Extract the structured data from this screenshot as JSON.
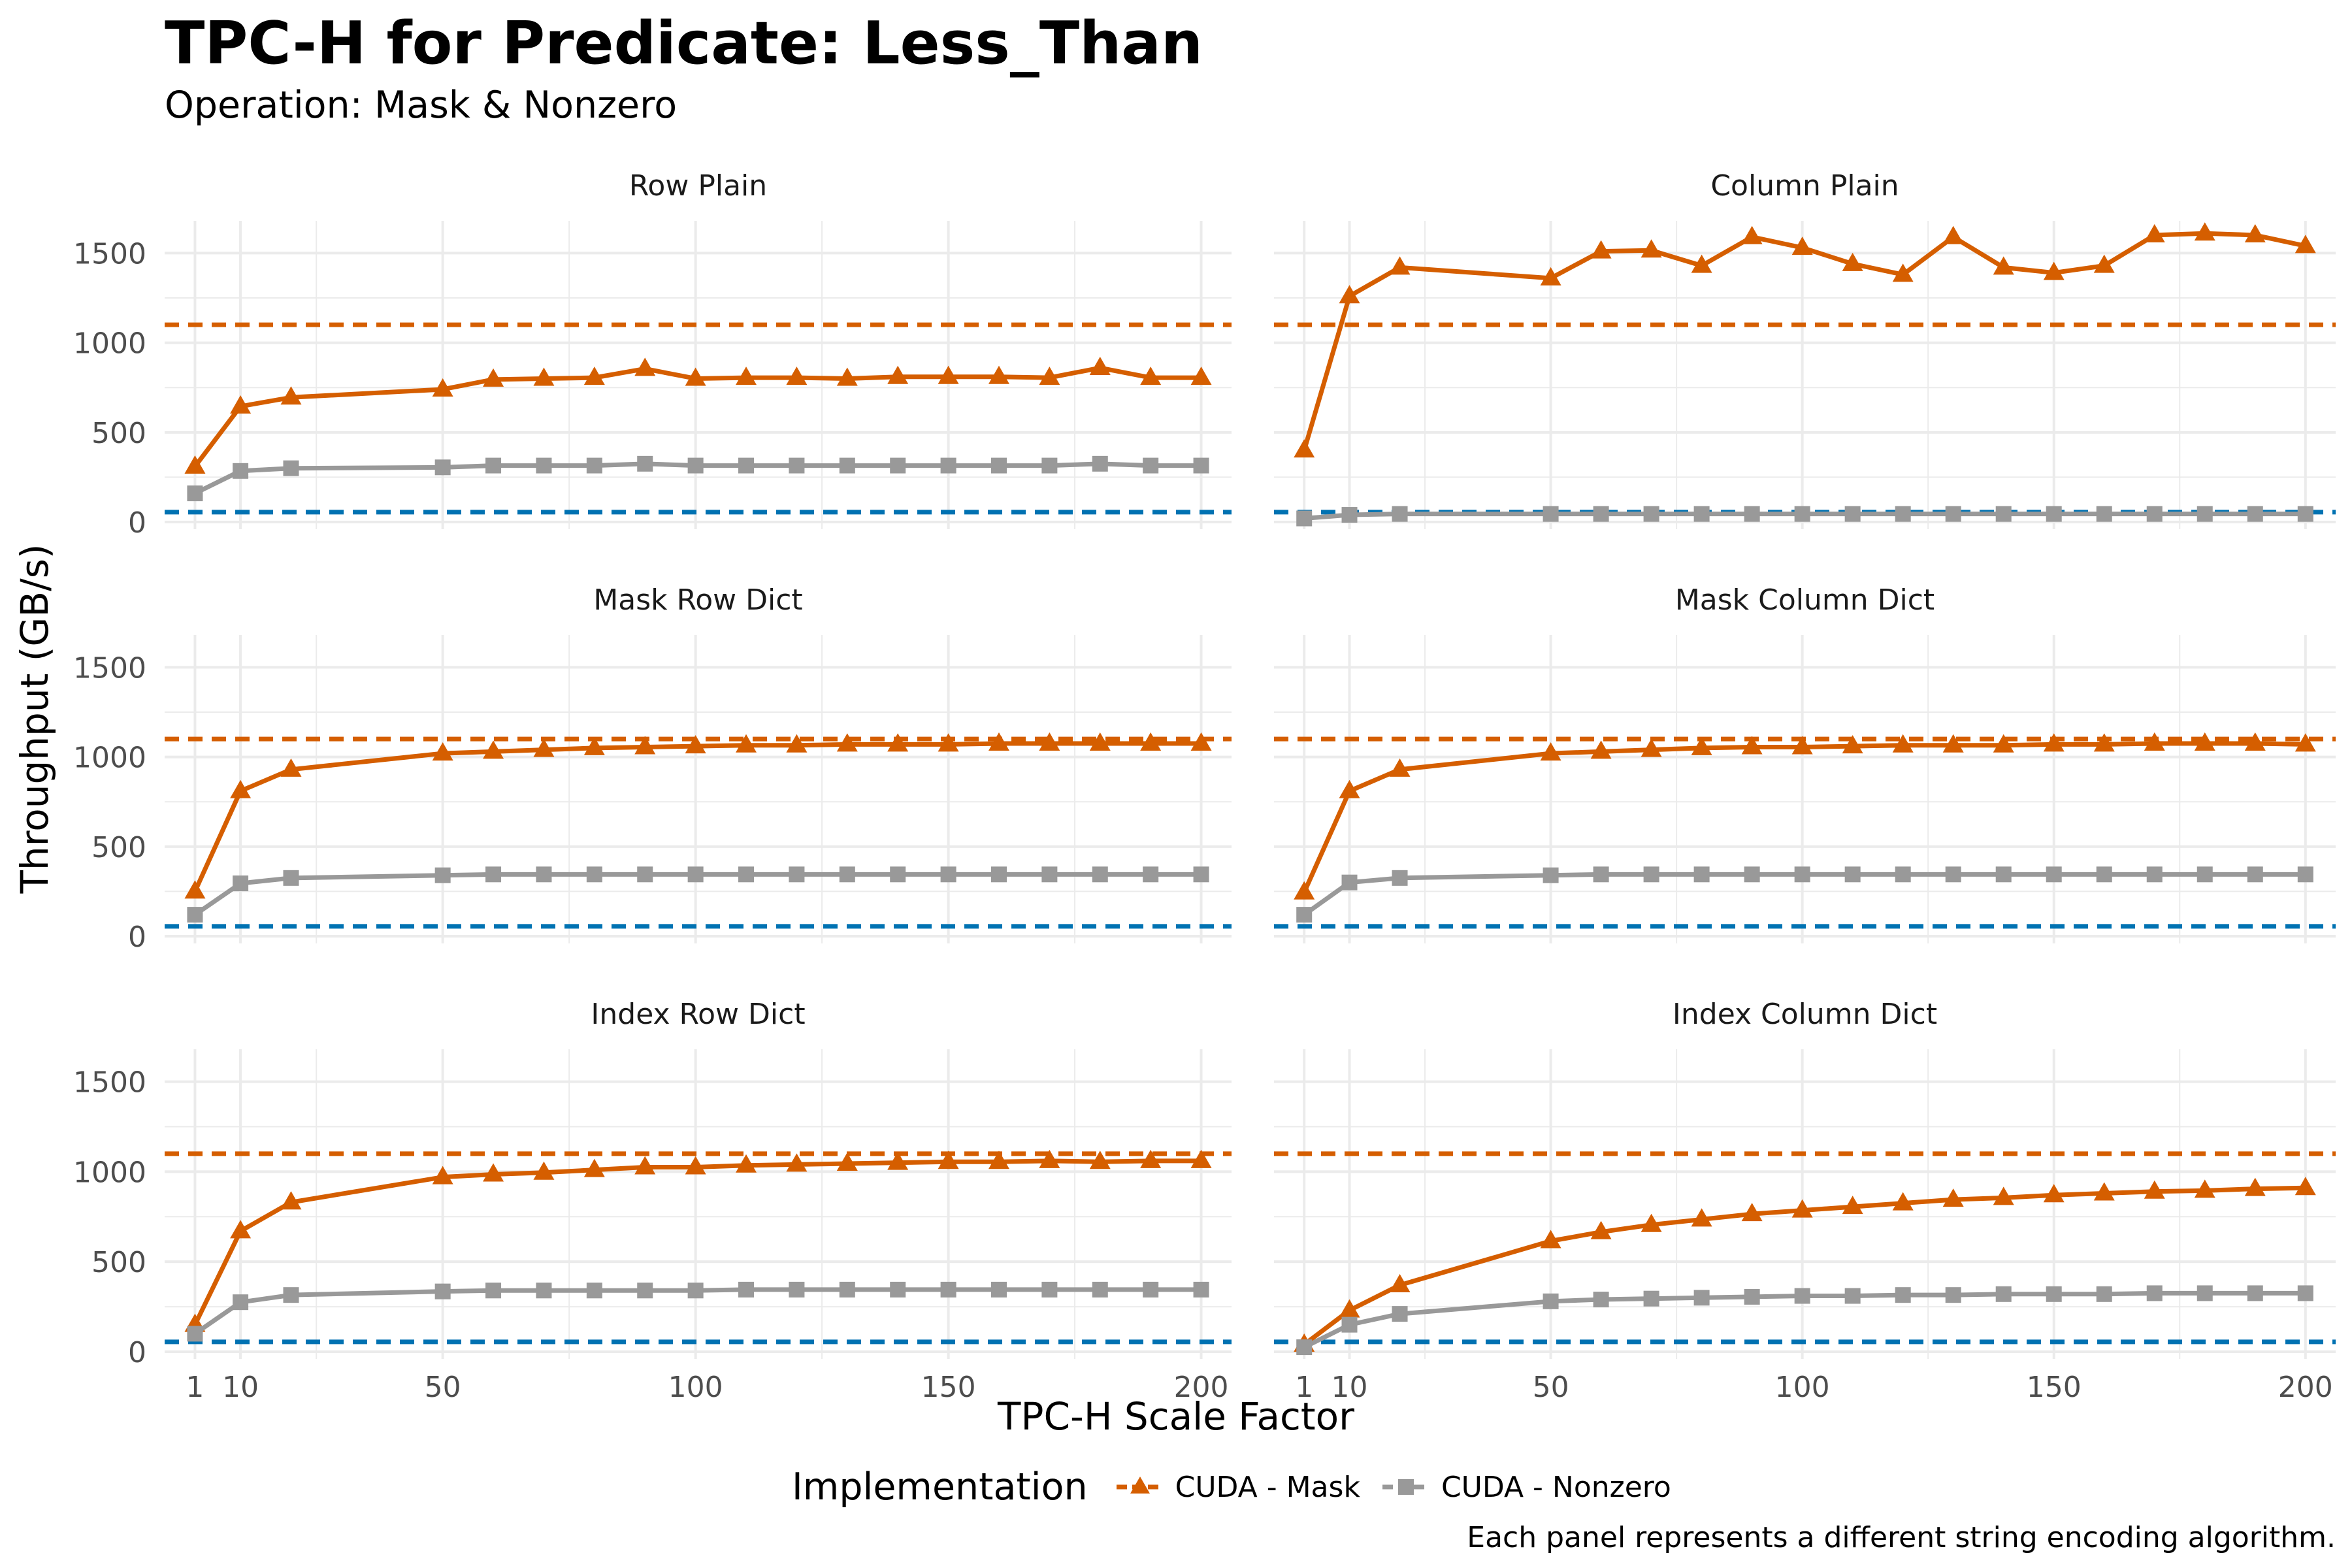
{
  "title": "TPC-H for Predicate: Less_Than",
  "subtitle": "Operation: Mask & Nonzero",
  "xlabel": "TPC-H Scale Factor",
  "ylabel": "Throughput (GB/s)",
  "caption": "Each panel represents a different string encoding algorithm.",
  "legend": {
    "title": "Implementation",
    "items": [
      {
        "label": "CUDA - Mask",
        "color": "#D55E00",
        "shape": "triangle"
      },
      {
        "label": "CUDA - Nonzero",
        "color": "#999999",
        "shape": "square"
      }
    ]
  },
  "colors": {
    "mask": "#D55E00",
    "nonzero": "#999999",
    "ref_high": "#D55E00",
    "ref_low": "#0072B2",
    "grid": "#EBEBEB"
  },
  "chart_data": {
    "type": "line",
    "facets": true,
    "x": [
      1,
      10,
      20,
      50,
      60,
      70,
      80,
      90,
      100,
      110,
      120,
      130,
      140,
      150,
      160,
      170,
      180,
      190,
      200
    ],
    "xlim": [
      -5,
      206
    ],
    "x_ticks": [
      1,
      10,
      50,
      100,
      150,
      200
    ],
    "ylim": [
      -40,
      1680
    ],
    "y_ticks": [
      0,
      500,
      1000,
      1500
    ],
    "grid": true,
    "legend_position": "bottom",
    "reference_lines": [
      {
        "y": 1100,
        "color": "#D55E00",
        "style": "dashed"
      },
      {
        "y": 55,
        "color": "#0072B2",
        "style": "dashed"
      }
    ],
    "panels": [
      {
        "title": "Row Plain",
        "series": [
          {
            "name": "CUDA - Mask",
            "values": [
              310,
              645,
              695,
              740,
              795,
              800,
              805,
              855,
              800,
              805,
              805,
              800,
              810,
              810,
              810,
              805,
              860,
              805,
              805
            ]
          },
          {
            "name": "CUDA - Nonzero",
            "values": [
              160,
              285,
              300,
              305,
              315,
              315,
              315,
              325,
              315,
              315,
              315,
              315,
              315,
              315,
              315,
              315,
              325,
              315,
              315
            ]
          }
        ]
      },
      {
        "title": "Column Plain",
        "series": [
          {
            "name": "CUDA - Mask",
            "values": [
              400,
              1260,
              1420,
              1360,
              1510,
              1515,
              1430,
              1590,
              1530,
              1440,
              1380,
              1590,
              1420,
              1390,
              1430,
              1600,
              1610,
              1600,
              1540
            ]
          },
          {
            "name": "CUDA - Nonzero",
            "values": [
              20,
              40,
              45,
              45,
              45,
              45,
              45,
              45,
              45,
              45,
              45,
              45,
              45,
              45,
              45,
              45,
              45,
              45,
              45
            ]
          }
        ]
      },
      {
        "title": "Mask Row Dict",
        "series": [
          {
            "name": "CUDA - Mask",
            "values": [
              250,
              810,
              930,
              1020,
              1030,
              1040,
              1050,
              1055,
              1060,
              1065,
              1065,
              1070,
              1070,
              1070,
              1075,
              1075,
              1075,
              1075,
              1075
            ]
          },
          {
            "name": "CUDA - Nonzero",
            "values": [
              120,
              295,
              325,
              340,
              345,
              345,
              345,
              345,
              345,
              345,
              345,
              345,
              345,
              345,
              345,
              345,
              345,
              345,
              345
            ]
          }
        ]
      },
      {
        "title": "Mask Column Dict",
        "series": [
          {
            "name": "CUDA - Mask",
            "values": [
              245,
              810,
              930,
              1020,
              1030,
              1040,
              1050,
              1055,
              1055,
              1060,
              1065,
              1065,
              1065,
              1070,
              1070,
              1075,
              1075,
              1075,
              1070
            ]
          },
          {
            "name": "CUDA - Nonzero",
            "values": [
              120,
              300,
              325,
              340,
              345,
              345,
              345,
              345,
              345,
              345,
              345,
              345,
              345,
              345,
              345,
              345,
              345,
              345,
              345
            ]
          }
        ]
      },
      {
        "title": "Index Row Dict",
        "series": [
          {
            "name": "CUDA - Mask",
            "values": [
              150,
              670,
              830,
              970,
              985,
              995,
              1010,
              1025,
              1025,
              1035,
              1040,
              1045,
              1050,
              1055,
              1055,
              1060,
              1055,
              1060,
              1060
            ]
          },
          {
            "name": "CUDA - Nonzero",
            "values": [
              100,
              275,
              315,
              335,
              340,
              340,
              340,
              340,
              340,
              345,
              345,
              345,
              345,
              345,
              345,
              345,
              345,
              345,
              345
            ]
          }
        ]
      },
      {
        "title": "Index Column Dict",
        "series": [
          {
            "name": "CUDA - Mask",
            "values": [
              40,
              230,
              370,
              615,
              665,
              705,
              735,
              765,
              785,
              805,
              825,
              845,
              855,
              870,
              880,
              890,
              895,
              905,
              910
            ]
          },
          {
            "name": "CUDA - Nonzero",
            "values": [
              25,
              150,
              210,
              280,
              290,
              295,
              300,
              305,
              310,
              310,
              315,
              315,
              320,
              320,
              320,
              325,
              325,
              325,
              325
            ]
          }
        ]
      }
    ]
  }
}
